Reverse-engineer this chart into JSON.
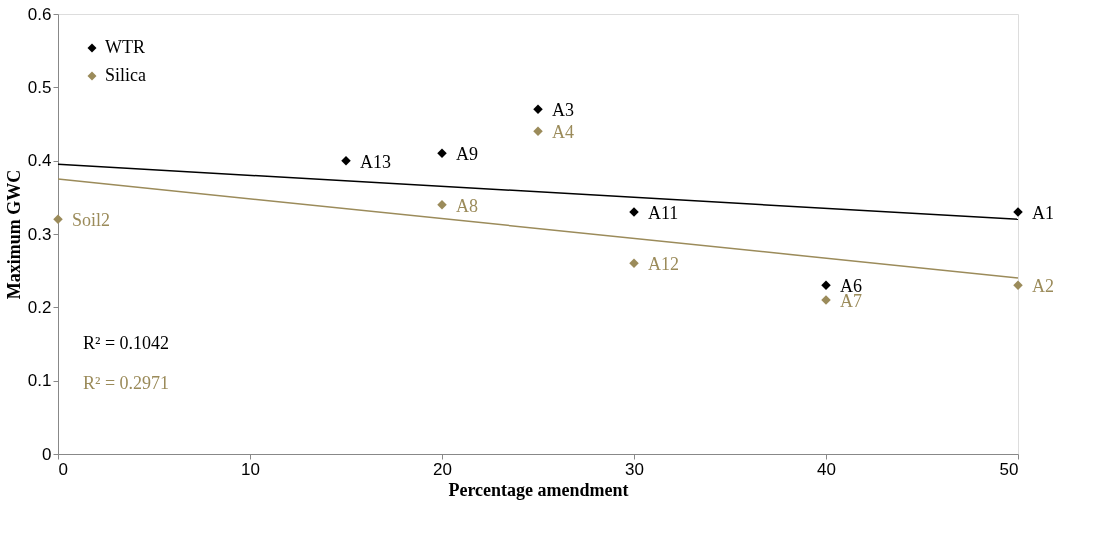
{
  "chart_data": {
    "type": "scatter",
    "xlabel": "Percentage amendment",
    "ylabel": "Maximum GWC",
    "xlim": [
      0,
      50
    ],
    "xticks": [
      0,
      10,
      20,
      30,
      40,
      50
    ],
    "ylim": [
      0,
      0.6
    ],
    "yticks": [
      0,
      0.1,
      0.2,
      0.3,
      0.4,
      0.5,
      0.6
    ],
    "grid": false,
    "legend": "top left",
    "marker": "diamond",
    "series": [
      {
        "name": "WTR",
        "color": "#000000",
        "x": [
          15,
          20,
          25,
          30,
          40,
          50
        ],
        "values": [
          0.4,
          0.41,
          0.47,
          0.33,
          0.23,
          0.33
        ]
      },
      {
        "name": "Silica",
        "color": "#9b8b5a",
        "x": [
          0,
          20,
          25,
          30,
          40,
          50
        ],
        "values": [
          0.32,
          0.34,
          0.44,
          0.26,
          0.21,
          0.23
        ]
      },
      {
        "type": "line",
        "color": "#000000",
        "x": [
          0,
          50
        ],
        "values": [
          0.395,
          0.32
        ],
        "line_style": "solid",
        "marker": "none"
      },
      {
        "type": "line",
        "color": "#9b8b5a",
        "x": [
          0,
          50
        ],
        "values": [
          0.375,
          0.24
        ],
        "line_style": "solid",
        "marker": "none"
      }
    ],
    "annotations": [
      {
        "text": "Soil2",
        "x": 0,
        "y": 0.32
      },
      {
        "text": "A13",
        "x": 15,
        "y": 0.4
      },
      {
        "text": "A9",
        "x": 20,
        "y": 0.41
      },
      {
        "text": "A3",
        "x": 25,
        "y": 0.47
      },
      {
        "text": "A4",
        "x": 25,
        "y": 0.44
      },
      {
        "text": "A8",
        "x": 20,
        "y": 0.34
      },
      {
        "text": "A11",
        "x": 30,
        "y": 0.33
      },
      {
        "text": "A12",
        "x": 30,
        "y": 0.26
      },
      {
        "text": "A6",
        "x": 40,
        "y": 0.23
      },
      {
        "text": "A7",
        "x": 40,
        "y": 0.21
      },
      {
        "text": "A1",
        "x": 50,
        "y": 0.33
      },
      {
        "text": "A2",
        "x": 50,
        "y": 0.23
      },
      "R² = 0.1042",
      "R² = 0.2971"
    ]
  }
}
